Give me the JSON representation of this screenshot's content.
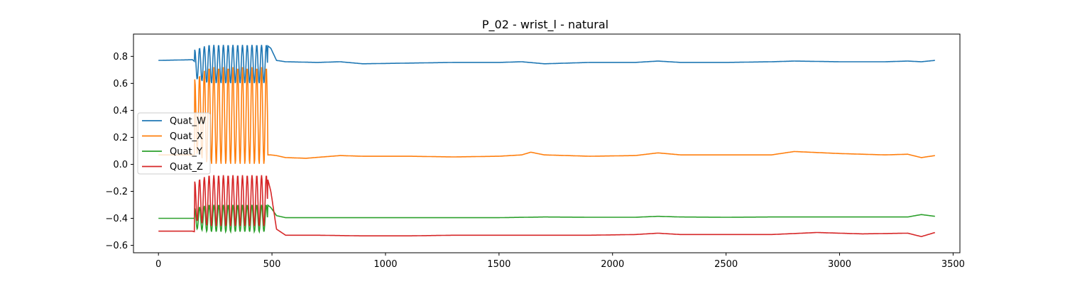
{
  "chart_data": {
    "type": "line",
    "title": "P_02 - wrist_l - natural",
    "xlabel": "",
    "ylabel": "",
    "xlim": [
      -110,
      3530
    ],
    "ylim": [
      -0.655,
      0.965
    ],
    "x_ticks": [
      0,
      500,
      1000,
      1500,
      2000,
      2500,
      3000,
      3500
    ],
    "x_tick_labels": [
      "0",
      "500",
      "1000",
      "1500",
      "2000",
      "2500",
      "3000",
      "3500"
    ],
    "y_ticks": [
      -0.6,
      -0.4,
      -0.2,
      0.0,
      0.2,
      0.4,
      0.6,
      0.8
    ],
    "y_tick_labels": [
      "−0.6",
      "−0.4",
      "−0.2",
      "0.0",
      "0.2",
      "0.4",
      "0.6",
      "0.8"
    ],
    "grid": false,
    "legend_position": "center-left",
    "oscillation": {
      "start": 160,
      "end": 480,
      "period": 21
    },
    "series": [
      {
        "name": "Quat_W",
        "color": "#1f77b4",
        "x": [
          0,
          150,
          160,
          480,
          495,
          520,
          560,
          700,
          800,
          900,
          1100,
          1300,
          1500,
          1600,
          1700,
          1900,
          2100,
          2200,
          2300,
          2500,
          2700,
          2800,
          3000,
          3200,
          3300,
          3360,
          3420
        ],
        "values": [
          0.77,
          0.775,
          0.76,
          0.88,
          0.86,
          0.77,
          0.76,
          0.755,
          0.76,
          0.745,
          0.75,
          0.755,
          0.755,
          0.76,
          0.745,
          0.755,
          0.755,
          0.765,
          0.755,
          0.755,
          0.76,
          0.765,
          0.76,
          0.76,
          0.765,
          0.76,
          0.77
        ],
        "osc_low": 0.6,
        "osc_high": 0.885
      },
      {
        "name": "Quat_X",
        "color": "#ff7f0e",
        "x": [
          0,
          480,
          495,
          520,
          560,
          650,
          800,
          900,
          1100,
          1300,
          1500,
          1600,
          1640,
          1700,
          1900,
          2100,
          2200,
          2300,
          2500,
          2700,
          2800,
          3000,
          3200,
          3300,
          3360,
          3420
        ],
        "values": [
          null,
          null,
          0.07,
          0.065,
          0.05,
          0.045,
          0.065,
          0.06,
          0.06,
          0.055,
          0.06,
          0.07,
          0.09,
          0.07,
          0.06,
          0.065,
          0.085,
          0.07,
          0.07,
          0.07,
          0.095,
          0.08,
          0.07,
          0.075,
          0.05,
          0.065
        ],
        "osc_low": 0.0,
        "osc_high": 0.72
      },
      {
        "name": "Quat_Y",
        "color": "#2ca02c",
        "x": [
          0,
          150,
          160,
          480,
          495,
          520,
          560,
          700,
          900,
          1100,
          1300,
          1500,
          1700,
          1900,
          2100,
          2200,
          2300,
          2500,
          2700,
          2900,
          3100,
          3300,
          3360,
          3420
        ],
        "values": [
          -0.4,
          -0.4,
          -0.4,
          -0.3,
          -0.32,
          -0.38,
          -0.395,
          -0.395,
          -0.395,
          -0.395,
          -0.395,
          -0.395,
          -0.39,
          -0.392,
          -0.392,
          -0.385,
          -0.39,
          -0.392,
          -0.39,
          -0.39,
          -0.39,
          -0.39,
          -0.372,
          -0.385
        ],
        "osc_low": -0.5,
        "osc_high": -0.3
      },
      {
        "name": "Quat_Z",
        "color": "#d62728",
        "x": [
          0,
          150,
          160,
          480,
          495,
          520,
          560,
          700,
          900,
          1100,
          1300,
          1500,
          1700,
          1900,
          2100,
          2200,
          2300,
          2500,
          2700,
          2900,
          3100,
          3300,
          3360,
          3420
        ],
        "values": [
          -0.495,
          -0.495,
          -0.5,
          -0.1,
          -0.2,
          -0.48,
          -0.525,
          -0.525,
          -0.53,
          -0.53,
          -0.525,
          -0.525,
          -0.525,
          -0.525,
          -0.52,
          -0.51,
          -0.52,
          -0.52,
          -0.52,
          -0.505,
          -0.515,
          -0.51,
          -0.535,
          -0.505
        ],
        "osc_low": -0.46,
        "osc_high": -0.08
      }
    ]
  }
}
